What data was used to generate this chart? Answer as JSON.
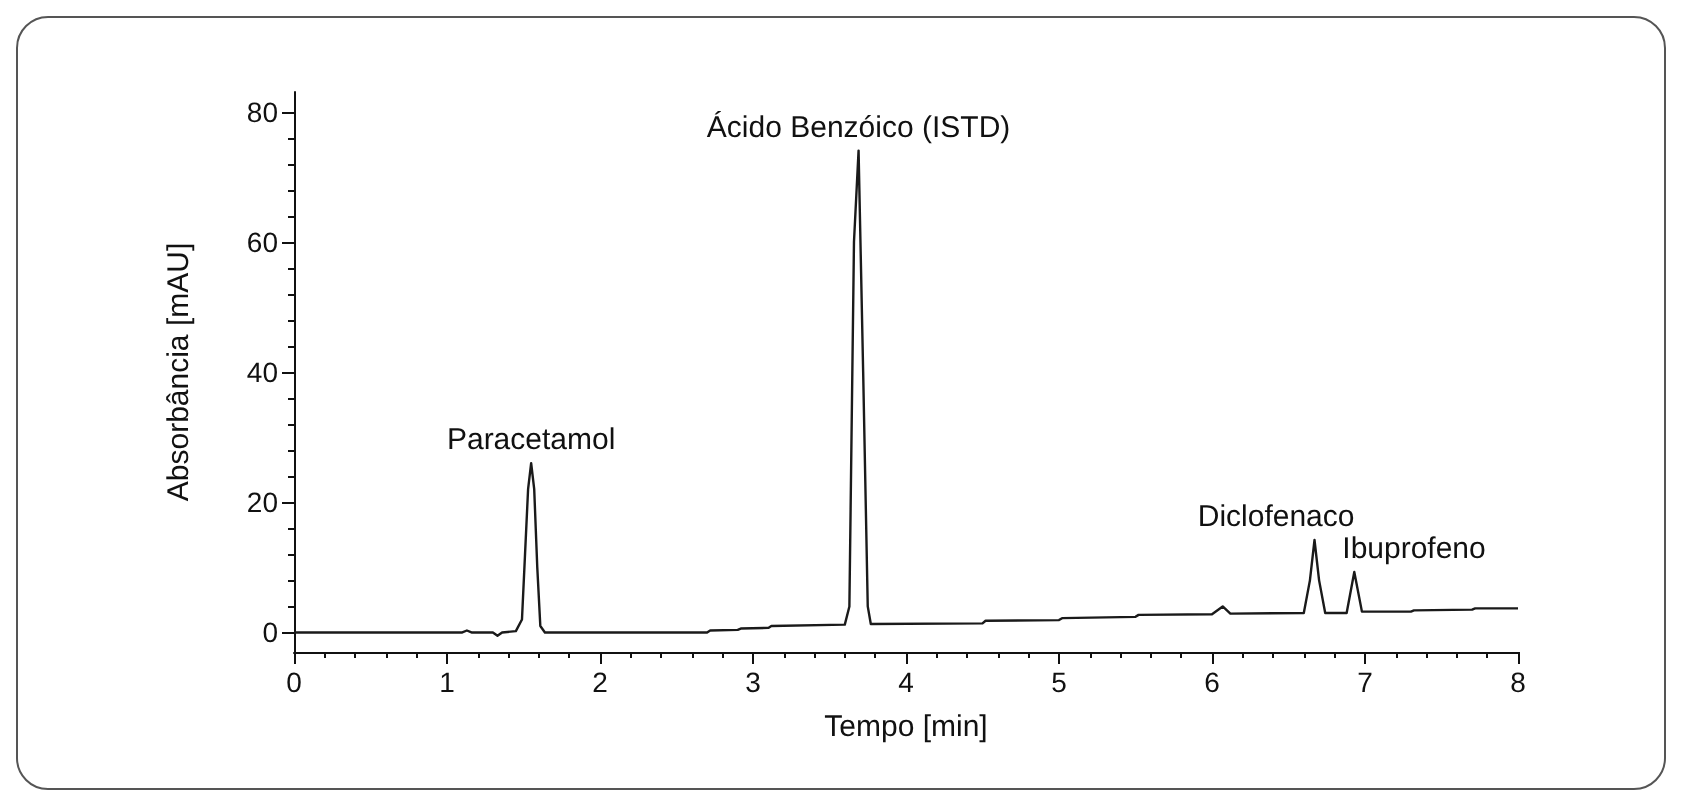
{
  "chart_data": {
    "type": "line",
    "xlabel": "Tempo [min]",
    "ylabel": "Absorbância [mAU]",
    "xlim": [
      0,
      8
    ],
    "xticks": [
      0,
      1,
      2,
      3,
      4,
      5,
      6,
      7,
      8
    ],
    "ylim": [
      -3,
      83
    ],
    "yticks": [
      0,
      20,
      40,
      60,
      80
    ],
    "grid": false,
    "marker": "none",
    "line_style": "solid",
    "series": [
      {
        "color": "#1a1a1a",
        "x": [
          0,
          1.1,
          1.13,
          1.16,
          1.3,
          1.33,
          1.36,
          1.45,
          1.49,
          1.51,
          1.53,
          1.55,
          1.57,
          1.59,
          1.61,
          1.64,
          2.7,
          2.72,
          2.9,
          2.92,
          3.1,
          3.12,
          3.6,
          3.63,
          3.66,
          3.69,
          3.72,
          3.75,
          3.77,
          4.5,
          4.52,
          5.0,
          5.02,
          5.5,
          5.52,
          6.0,
          6.07,
          6.12,
          6.6,
          6.64,
          6.67,
          6.7,
          6.74,
          6.88,
          6.93,
          6.98,
          7.3,
          7.32,
          7.7,
          7.72,
          8
        ],
        "values": [
          0,
          0,
          0.3,
          0,
          0,
          -0.5,
          0,
          0.2,
          2,
          12,
          22,
          26,
          22,
          10,
          1,
          0,
          0,
          0.3,
          0.4,
          0.6,
          0.7,
          1,
          1.2,
          4,
          60,
          74,
          40,
          4,
          1.3,
          1.4,
          1.8,
          1.9,
          2.2,
          2.4,
          2.7,
          2.8,
          4,
          2.9,
          3,
          8,
          14.2,
          8,
          3,
          3,
          9.3,
          3.2,
          3.2,
          3.4,
          3.5,
          3.7,
          3.7
        ]
      }
    ],
    "annotations": [
      {
        "text": "Paracetamol",
        "x": 1.55,
        "y": 26
      },
      {
        "text": "Ácido Benzóico (ISTD)",
        "x": 3.69,
        "y": 74
      },
      {
        "text": "Diclofenaco",
        "x": 6.67,
        "y": 14.2
      },
      {
        "text": "Ibuprofeno",
        "x": 6.93,
        "y": 9.3
      }
    ]
  }
}
